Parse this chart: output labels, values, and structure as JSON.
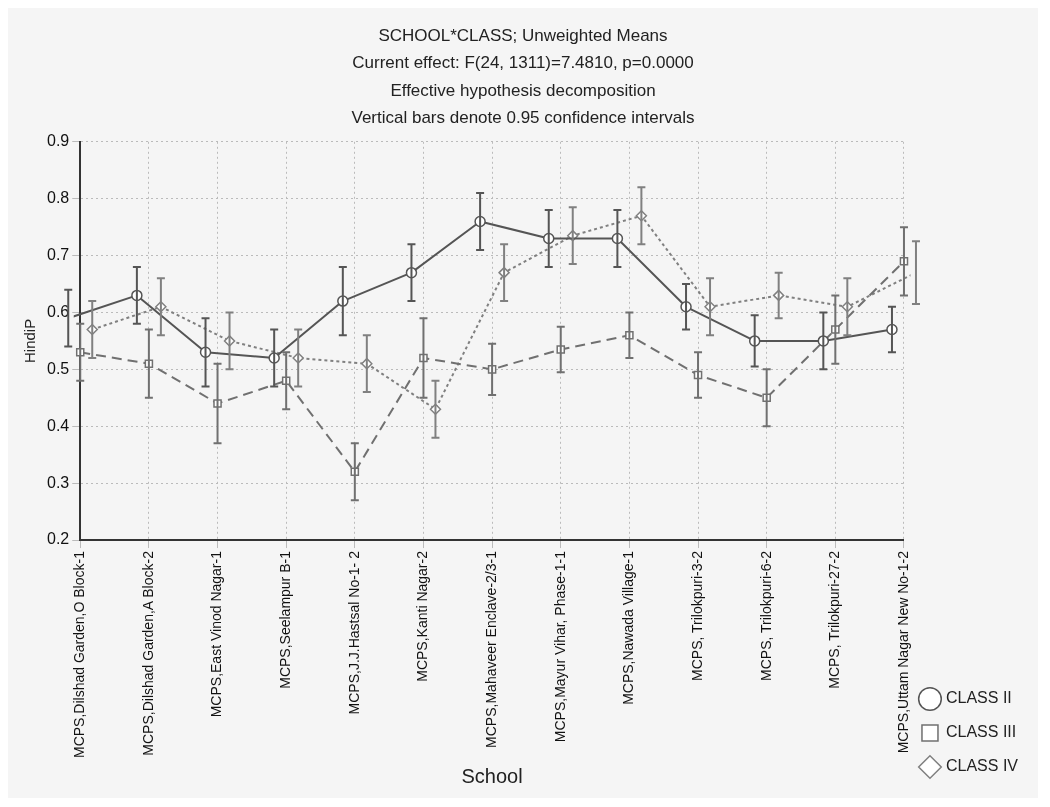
{
  "chart_data": {
    "type": "line",
    "title": "SCHOOL*CLASS; Unweighted Means",
    "subtitle": "Current effect: F(24, 1311)=7.4810, p=0.0000",
    "annotations": [
      "Effective hypothesis decomposition",
      "Vertical bars denote 0.95 confidence intervals"
    ],
    "xlabel": "School",
    "ylabel": "HindiP",
    "categories": [
      "MCPS,Dilshad Garden,O Block-1",
      "MCPS,Dilshad Garden,A Block-2",
      "MCPS,East Vinod Nagar-1",
      "MCPS,Seelampur B-1",
      "MCPS,J.J.Hastsal No-1- 2",
      "MCPS,Kanti Nagar-2",
      "MCPS,Mahaveer Enclave-2/3-1",
      "MCPS,Mayur Vihar, Phase-1-1",
      "MCPS,Nawada Village-1",
      "MCPS, Trilokpuri-3-2",
      "MCPS, Trilokpuri-6-2",
      "MCPS, Trilokpuri-27-2",
      "MCPS,Uttam Nagar New No-1-2"
    ],
    "ylim": [
      0.2,
      0.9
    ],
    "yticks": [
      0.2,
      0.3,
      0.4,
      0.5,
      0.6,
      0.7,
      0.8,
      0.9
    ],
    "grid": true,
    "legend": "bottom right",
    "series": [
      {
        "name": "CLASS II",
        "color": "#555555",
        "marker": "circle",
        "line_style": "solid",
        "values": [
          0.59,
          0.63,
          0.53,
          0.52,
          0.62,
          0.67,
          0.76,
          0.73,
          0.73,
          0.61,
          0.55,
          0.55,
          0.57
        ],
        "errors": [
          0.05,
          0.05,
          0.06,
          0.05,
          0.06,
          0.05,
          0.05,
          0.05,
          0.05,
          0.04,
          0.045,
          0.05,
          0.04
        ]
      },
      {
        "name": "CLASS III",
        "color": "#707070",
        "marker": "square",
        "line_style": "dashed",
        "values": [
          0.53,
          0.51,
          0.44,
          0.48,
          0.32,
          0.52,
          0.5,
          0.535,
          0.56,
          0.49,
          0.45,
          0.57,
          0.69
        ],
        "errors": [
          0.05,
          0.06,
          0.07,
          0.05,
          0.05,
          0.07,
          0.045,
          0.04,
          0.04,
          0.04,
          0.05,
          0.06,
          0.06
        ]
      },
      {
        "name": "CLASS IV",
        "color": "#808080",
        "marker": "diamond",
        "line_style": "dotted",
        "values": [
          0.57,
          0.61,
          0.55,
          0.52,
          0.51,
          0.43,
          0.67,
          0.735,
          0.77,
          0.61,
          0.63,
          0.61,
          0.67
        ],
        "errors": [
          0.05,
          0.05,
          0.05,
          0.05,
          0.05,
          0.05,
          0.05,
          0.05,
          0.05,
          0.05,
          0.04,
          0.05,
          0.055
        ]
      }
    ]
  }
}
